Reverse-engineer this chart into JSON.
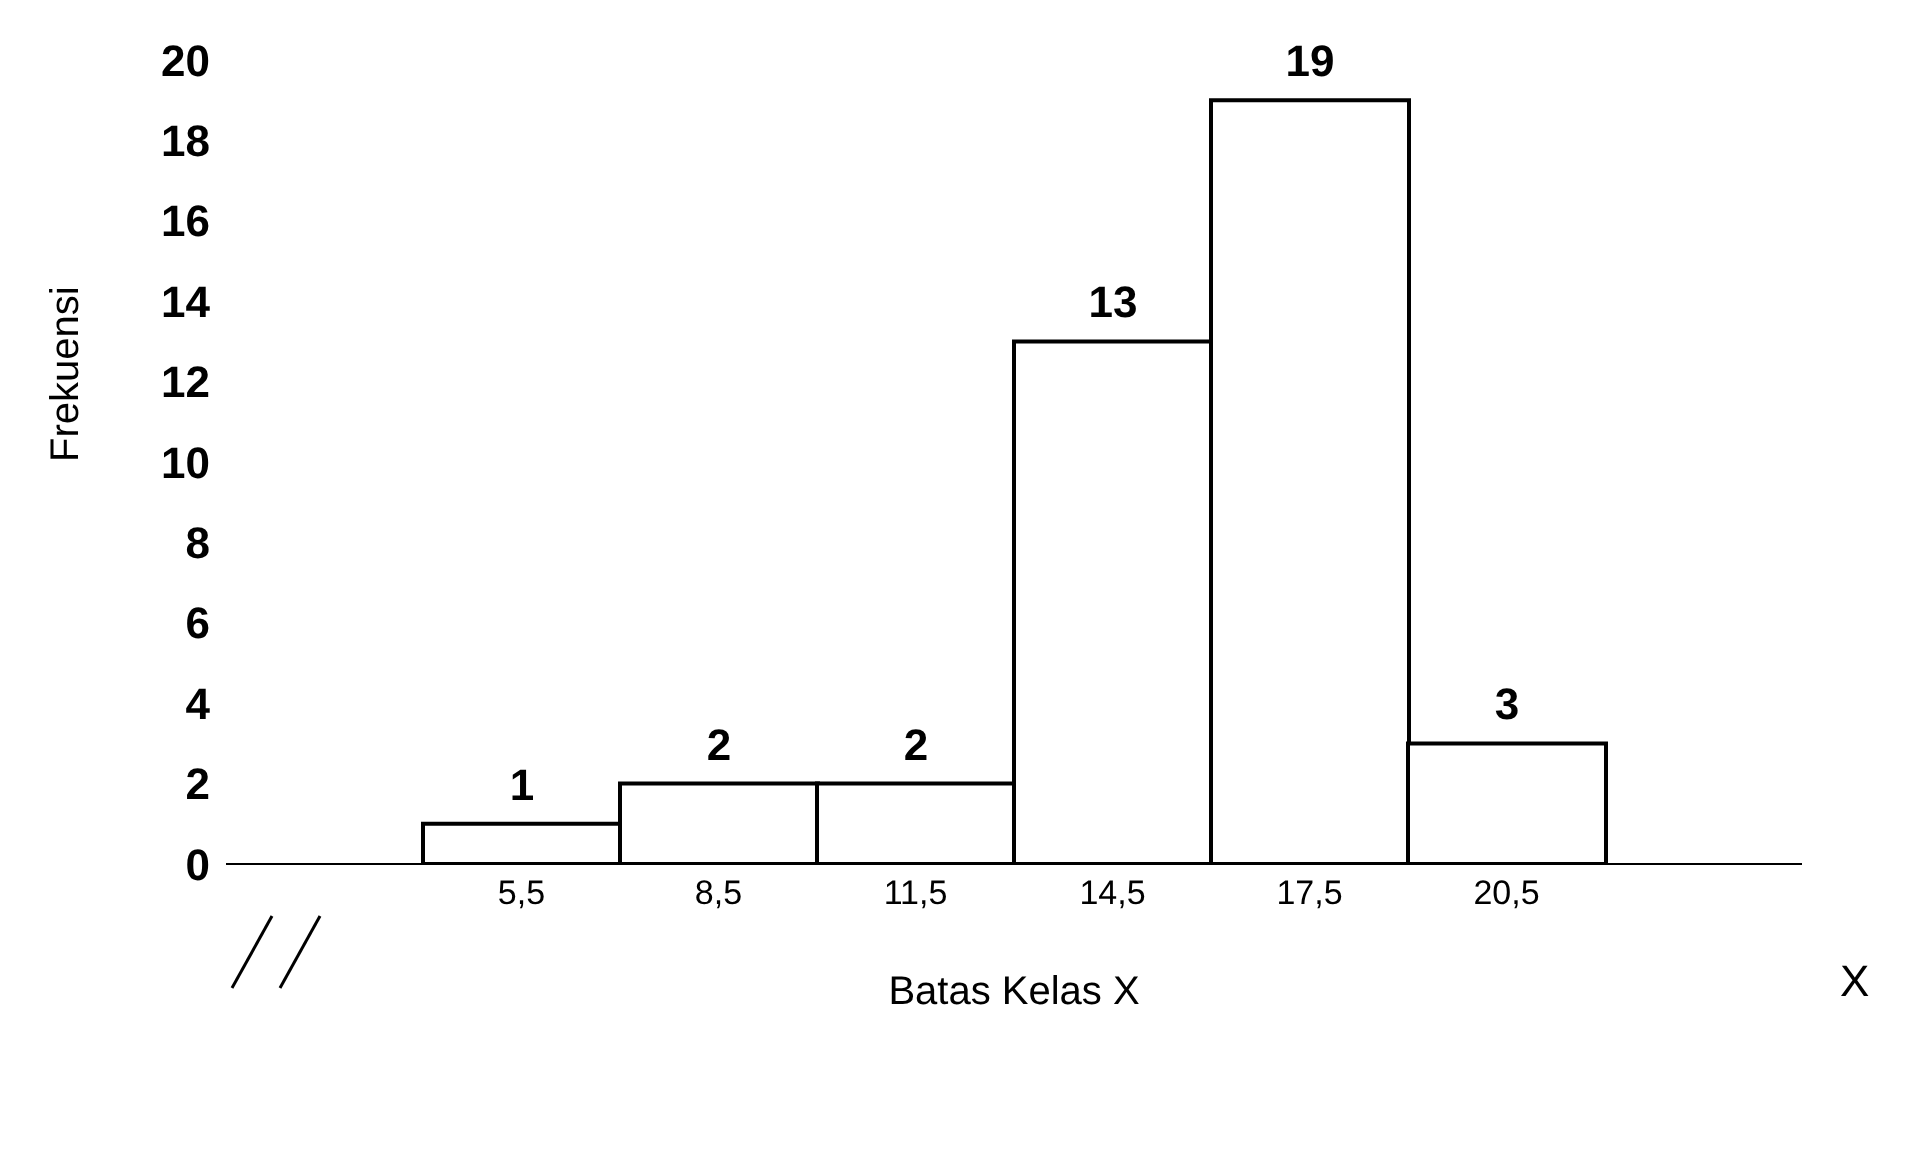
{
  "chart_data": {
    "type": "bar",
    "xlabel": "Batas Kelas X",
    "ylabel": "Frekuensi",
    "annotations": [
      "X"
    ],
    "categories": [
      null,
      "5,5",
      "8,5",
      "11,5",
      "14,5",
      "17,5",
      "20,5",
      null
    ],
    "values": [
      null,
      1,
      2,
      2,
      13,
      19,
      3,
      null
    ],
    "color": "#ffffff",
    "ylim": [
      0,
      20
    ],
    "yticks": [
      0,
      2,
      4,
      6,
      8,
      10,
      12,
      14,
      16,
      18,
      20
    ],
    "data_labels": true,
    "grid": false
  }
}
